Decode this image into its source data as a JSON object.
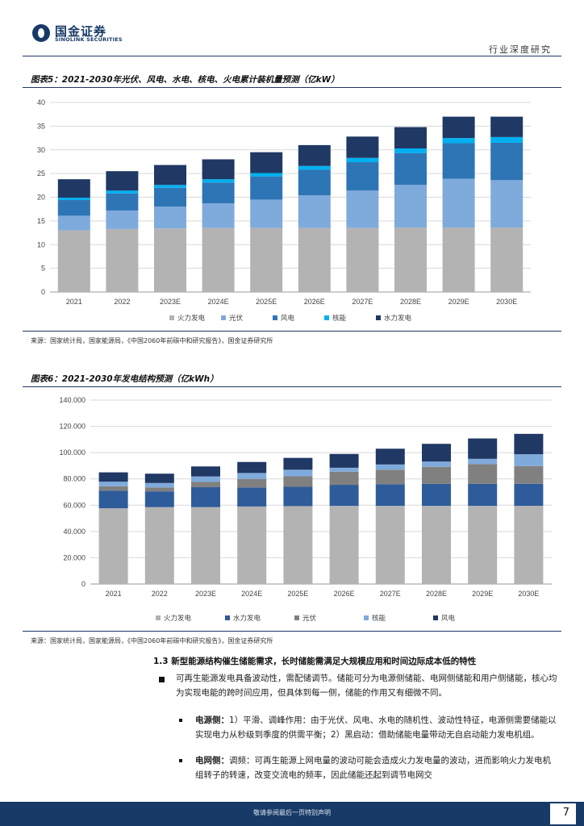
{
  "header": {
    "logo_cn": "国金证券",
    "logo_en": "SINOLINK SECURITIES",
    "category": "行业深度研究"
  },
  "figure5": {
    "title": "图表5：2021-2030年光伏、风电、水电、核电、火电累计装机量预测（亿kW）",
    "source": "来源：国家统计局，国家能源局，《中国2060年前碳中和研究报告》，国金证券研究所"
  },
  "figure6": {
    "title": "图表6：2021-2030年发电结构预测（亿kWh）",
    "source": "来源：国家统计局，国家能源局，《中国2060年前碳中和研究报告》，国金证券研究所"
  },
  "chart_data": [
    {
      "type": "bar",
      "stacked": true,
      "title": "图表5：2021-2030年光伏、风电、水电、核电、火电累计装机量预测（亿kW）",
      "categories": [
        "2021",
        "2022",
        "2023E",
        "2024E",
        "2025E",
        "2026E",
        "2027E",
        "2028E",
        "2029E",
        "2030E"
      ],
      "ylim": [
        0,
        40
      ],
      "yticks": [
        "0",
        "5",
        "10",
        "15",
        "20",
        "25",
        "30",
        "35",
        "40"
      ],
      "grid": true,
      "legend_position": "bottom",
      "series": [
        {
          "name": "火力发电",
          "color": "#b3b3b3",
          "values": [
            13.0,
            13.3,
            13.4,
            13.5,
            13.5,
            13.5,
            13.5,
            13.6,
            13.6,
            13.6
          ]
        },
        {
          "name": "光伏",
          "color": "#7faadc",
          "values": [
            3.1,
            3.9,
            4.6,
            5.2,
            6.0,
            6.9,
            7.9,
            9.0,
            10.3,
            10.0
          ]
        },
        {
          "name": "风电",
          "color": "#2e75b6",
          "values": [
            3.3,
            3.6,
            4.0,
            4.4,
            4.9,
            5.4,
            6.0,
            6.7,
            7.5,
            7.9
          ]
        },
        {
          "name": "核能",
          "color": "#00b0f0",
          "values": [
            0.5,
            0.6,
            0.6,
            0.7,
            0.7,
            0.8,
            0.9,
            1.0,
            1.1,
            1.2
          ]
        },
        {
          "name": "水力发电",
          "color": "#203864",
          "values": [
            3.9,
            4.1,
            4.2,
            4.2,
            4.4,
            4.4,
            4.5,
            4.5,
            4.5,
            4.3
          ]
        }
      ]
    },
    {
      "type": "bar",
      "stacked": true,
      "title": "图表6：2021-2030年发电结构预测（亿kWh）",
      "categories": [
        "2021",
        "2022",
        "2023E",
        "2024E",
        "2025E",
        "2026E",
        "2027E",
        "2028E",
        "2029E",
        "2030E"
      ],
      "ylim": [
        0,
        140000
      ],
      "yticks": [
        "0",
        "20.000",
        "40.000",
        "60.000",
        "80.000",
        "100.000",
        "120.000",
        "140.000"
      ],
      "grid": true,
      "legend_position": "bottom",
      "series": [
        {
          "name": "火力发电",
          "color": "#b3b3b3",
          "values": [
            57700,
            58500,
            58500,
            59000,
            59300,
            59500,
            59500,
            59500,
            59500,
            59500
          ]
        },
        {
          "name": "水力发电",
          "color": "#2e5c9a",
          "values": [
            13400,
            12000,
            15200,
            14500,
            14700,
            16000,
            16500,
            16700,
            16800,
            16800
          ]
        },
        {
          "name": "光伏",
          "color": "#808080",
          "values": [
            3300,
            3000,
            4000,
            6500,
            8000,
            10000,
            11000,
            13000,
            15000,
            13500
          ]
        },
        {
          "name": "核能",
          "color": "#7faadc",
          "values": [
            3500,
            3400,
            4200,
            4500,
            5000,
            3000,
            4000,
            4000,
            4000,
            9000
          ]
        },
        {
          "name": "风电",
          "color": "#203864",
          "values": [
            7100,
            7100,
            7600,
            8400,
            9000,
            10500,
            12000,
            13500,
            15500,
            15500
          ]
        }
      ]
    }
  ],
  "section": {
    "title": "1.3 新型能源结构催生储能需求，长时储能需满足大规模应用和时间边际成本低的特性",
    "para1": "可再生能源发电具备波动性，需配储调节。储能可分为电源侧储能、电网侧储能和用户侧储能，核心均为实现电能的跨时间应用，但具体到每一侧，储能的作用又有细微不同。",
    "item1_label": "电源侧：",
    "item1_text": "1）平滑、调峰作用：由于光伏、风电、水电的随机性、波动性特征，电源侧需要储能以实现电力从秒级到季度的供需平衡；2）黑启动：借助储能电量带动无自启动能力发电机组。",
    "item2_label": "电网侧：",
    "item2_text": "调频：可再生能源上网电量的波动可能会造成火力发电量的波动，进而影响火力发电机组转子的转速，改变交流电的频率，因此储能还起到调节电网交"
  },
  "footer": {
    "disclaimer": "敬请参阅最后一页特别声明",
    "page": "7"
  }
}
